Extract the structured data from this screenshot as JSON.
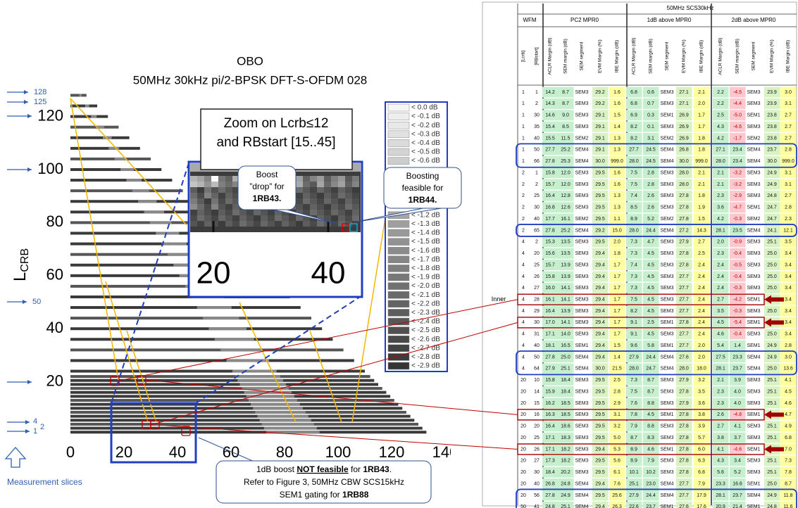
{
  "figure": {
    "title_lines": [
      "OBO",
      "50MHz 30kHz pi/2-BPSK DFT-S-OFDM 028"
    ],
    "y_axis_label": "L",
    "y_axis_subscript": "CRB",
    "xticks": [
      0,
      20,
      40,
      60,
      80,
      100,
      120,
      140
    ],
    "yticks": [
      20,
      40,
      60,
      80,
      100,
      120
    ],
    "slice_labels": [
      "128",
      "125",
      "50",
      "4",
      "1",
      "2"
    ],
    "slices_caption": "Measurement slices",
    "legend": [
      "< 0.0 dB",
      "< -0.1 dB",
      "< -0.2 dB",
      "< -0.3 dB",
      "< -0.4 dB",
      "< -0.5 dB",
      "< -0.6 dB",
      "< -1.2 dB",
      "< -1.3 dB",
      "< -1.4 dB",
      "< -1.5 dB",
      "< -1.6 dB",
      "< -1.7 dB",
      "< -1.8 dB",
      "< -1.9 dB",
      "< -2.0 dB",
      "< -2.1 dB",
      "< -2.2 dB",
      "< -2.3 dB",
      "< -2.4 dB",
      "< -2.5 dB",
      "< -2.6 dB",
      "< -2.7 dB",
      "< -2.8 dB",
      "< -2.9 dB"
    ],
    "zoom_title": [
      "Zoom on Lcrb≤12",
      "and RBstart [15..45]"
    ],
    "zoom_ticks": [
      "20",
      "40"
    ],
    "callout_drop": [
      "Boost",
      "”drop” for",
      "1RB43."
    ],
    "callout_feasible": [
      "Boosting",
      "feasible for",
      "1RB44."
    ],
    "note_line1": [
      "1dB boost ",
      "NOT feasible",
      " for ",
      "1RB43",
      "."
    ],
    "note_line2": "Refer to Figure 3, 50MHz CBW SCS15kHz",
    "note_line3": [
      "SEM1 gating for ",
      "1RB88"
    ]
  },
  "table": {
    "title": "50MHz SCS30kHz",
    "wfm": "WFM",
    "groups": [
      "PC2 MPR0",
      "1dB above MPR0",
      "2dB above MPR0"
    ],
    "wfm_columns": [
      "[Lcrb]",
      "[RBstart]"
    ],
    "metric_columns": [
      "ACLR Margin (dB)",
      "SEM margin (dB)",
      "SEM segment",
      "EVM Margin (%)",
      "IBE Margin (dB)"
    ],
    "row_note": "Inner",
    "rows": [
      [
        "1",
        "1",
        "14.2",
        "8.7",
        "SEM3",
        "29.2",
        "1.6",
        "6.8",
        "0.6",
        "SEM3",
        "27.1",
        "2.1",
        "2.2",
        "-4.5",
        "SEM3",
        "23.9",
        "3.0"
      ],
      [
        "1",
        "2",
        "14.3",
        "8.7",
        "SEM3",
        "29.2",
        "1.6",
        "6.8",
        "0.7",
        "SEM3",
        "27.1",
        "2.0",
        "2.2",
        "-4.4",
        "SEM3",
        "23.9",
        "3.1"
      ],
      [
        "1",
        "30",
        "14.6",
        "9.0",
        "SEM3",
        "29.1",
        "1.5",
        "6.9",
        "0.3",
        "SEM1",
        "26.9",
        "1.7",
        "2.5",
        "-5.0",
        "SEM1",
        "23.8",
        "2.7"
      ],
      [
        "1",
        "35",
        "15.4",
        "8.5",
        "SEM3",
        "29.1",
        "1.4",
        "8.2",
        "0.1",
        "SEM3",
        "26.9",
        "1.7",
        "4.3",
        "-4.6",
        "SEM3",
        "23.8",
        "2.7"
      ],
      [
        "1",
        "40",
        "15.5",
        "11.5",
        "SEM2",
        "29.1",
        "1.3",
        "8.2",
        "3.1",
        "SEM2",
        "26.9",
        "1.8",
        "4.2",
        "-1.7",
        "SEM2",
        "23.8",
        "2.7"
      ],
      [
        "1",
        "50",
        "27.7",
        "25.2",
        "SEM4",
        "29.1",
        "1.3",
        "27.7",
        "24.5",
        "SEM4",
        "26.8",
        "1.8",
        "27.1",
        "23.4",
        "SEM4",
        "23.7",
        "2.8"
      ],
      [
        "1",
        "66",
        "27.8",
        "25.3",
        "SEM4",
        "30.0",
        "999.0",
        "28.0",
        "24.5",
        "SEM4",
        "30.0",
        "999.0",
        "28.0",
        "23.4",
        "SEM4",
        "30.0",
        "999.0"
      ],
      [
        "2",
        "1",
        "15.8",
        "12.0",
        "SEM3",
        "29.5",
        "1.6",
        "7.5",
        "2.8",
        "SEM3",
        "28.0",
        "2.1",
        "2.1",
        "-3.2",
        "SEM3",
        "24.9",
        "3.1"
      ],
      [
        "2",
        "2",
        "15.7",
        "12.0",
        "SEM3",
        "29.5",
        "1.6",
        "7.5",
        "2.8",
        "SEM3",
        "28.0",
        "2.1",
        "2.1",
        "-3.2",
        "SEM3",
        "24.9",
        "3.1"
      ],
      [
        "2",
        "25",
        "16.4",
        "12.8",
        "SEM3",
        "29.5",
        "1.3",
        "7.4",
        "2.6",
        "SEM3",
        "27.8",
        "1.8",
        "2.3",
        "-2.9",
        "SEM3",
        "24.8",
        "2.7"
      ],
      [
        "2",
        "30",
        "16.8",
        "12.6",
        "SEM3",
        "29.5",
        "1.3",
        "8.5",
        "2.6",
        "SEM3",
        "27.8",
        "1.9",
        "3.6",
        "-4.7",
        "SEM1",
        "24.7",
        "2.8"
      ],
      [
        "2",
        "40",
        "17.7",
        "16.1",
        "SEM2",
        "29.5",
        "1.1",
        "8.9",
        "5.2",
        "SEM2",
        "27.8",
        "1.5",
        "4.2",
        "-0.3",
        "SEM2",
        "24.7",
        "2.3"
      ],
      [
        "2",
        "65",
        "27.8",
        "25.2",
        "SEM4",
        "29.2",
        "15.0",
        "28.0",
        "24.4",
        "SEM4",
        "27.2",
        "14.3",
        "28.1",
        "23.5",
        "SEM4",
        "24.1",
        "12.1"
      ],
      [
        "4",
        "2",
        "15.3",
        "13.5",
        "SEM3",
        "29.5",
        "2.0",
        "7.3",
        "4.7",
        "SEM3",
        "27.9",
        "2.7",
        "2.0",
        "-0.9",
        "SEM3",
        "25.1",
        "3.5"
      ],
      [
        "4",
        "20",
        "15.6",
        "13.5",
        "SEM3",
        "29.4",
        "1.8",
        "7.3",
        "4.5",
        "SEM3",
        "27.8",
        "2.5",
        "2.3",
        "-0.4",
        "SEM3",
        "25.0",
        "3.4"
      ],
      [
        "4",
        "25",
        "15.7",
        "13.9",
        "SEM3",
        "29.4",
        "1.7",
        "7.4",
        "4.5",
        "SEM3",
        "27.8",
        "2.4",
        "2.4",
        "-0.5",
        "SEM3",
        "25.0",
        "3.4"
      ],
      [
        "4",
        "26",
        "15.8",
        "13.9",
        "SEM3",
        "29.4",
        "1.7",
        "7.3",
        "4.5",
        "SEM3",
        "27.7",
        "2.4",
        "2.4",
        "-0.4",
        "SEM3",
        "25.0",
        "3.4"
      ],
      [
        "4",
        "27",
        "16.0",
        "14.1",
        "SEM3",
        "29.4",
        "1.7",
        "7.3",
        "4.5",
        "SEM3",
        "27.7",
        "2.4",
        "2.4",
        "-0.3",
        "SEM3",
        "25.0",
        "3.4"
      ],
      [
        "4",
        "28",
        "16.1",
        "14.1",
        "SEM3",
        "29.4",
        "1.7",
        "7.5",
        "4.5",
        "SEM3",
        "27.7",
        "2.4",
        "2.7",
        "-4.2",
        "SEM1",
        null,
        "3.4"
      ],
      [
        "4",
        "29",
        "16.4",
        "13.9",
        "SEM3",
        "29.4",
        "1.7",
        "8.2",
        "4.5",
        "SEM3",
        "27.7",
        "2.4",
        "3.5",
        "-0.3",
        "SEM3",
        "25.0",
        "3.4"
      ],
      [
        "4",
        "30",
        "17.0",
        "14.1",
        "SEM3",
        "29.4",
        "1.7",
        "9.1",
        "2.5",
        "SEM1",
        "27.8",
        "2.4",
        "4.5",
        "-5.4",
        "SEM1",
        null,
        "3.4"
      ],
      [
        "4",
        "31",
        "17.1",
        "14.0",
        "SEM3",
        "29.4",
        "1.7",
        "9.1",
        "4.5",
        "SEM3",
        "27.7",
        "2.4",
        "4.6",
        "-0.4",
        "SEM3",
        "25.0",
        "3.4"
      ],
      [
        "4",
        "40",
        "18.1",
        "16.5",
        "SEM1",
        "29.4",
        "1.5",
        "9.6",
        "5.8",
        "SEM1",
        "27.7",
        "2.0",
        "5.4",
        "1.4",
        "SEM1",
        "24.9",
        "2.8"
      ],
      [
        "4",
        "50",
        "27.8",
        "25.0",
        "SEM4",
        "29.4",
        "1.4",
        "27.9",
        "24.4",
        "SEM4",
        "27.6",
        "2.0",
        "27.5",
        "23.3",
        "SEM4",
        "24.9",
        "3.0"
      ],
      [
        "4",
        "64",
        "27.9",
        "25.1",
        "SEM4",
        "30.0",
        "21.5",
        "28.0",
        "24.7",
        "SEM4",
        "28.0",
        "18.0",
        "28.1",
        "23.7",
        "SEM4",
        "25.0",
        "13.6"
      ],
      [
        "20",
        "10",
        "15.8",
        "18.4",
        "SEM3",
        "29.5",
        "2.5",
        "7.3",
        "8.7",
        "SEM3",
        "27.9",
        "3.2",
        "2.1",
        "3.9",
        "SEM3",
        "25.1",
        "4.1"
      ],
      [
        "20",
        "14",
        "15.9",
        "18.4",
        "SEM3",
        "29.5",
        "2.8",
        "7.5",
        "8.7",
        "SEM3",
        "27.8",
        "3.5",
        "2.3",
        "4.0",
        "SEM3",
        "25.1",
        "4.5"
      ],
      [
        "20",
        "15",
        "16.2",
        "18.5",
        "SEM3",
        "29.5",
        "2.9",
        "7.6",
        "8.8",
        "SEM3",
        "27.9",
        "3.6",
        "2.3",
        "4.0",
        "SEM3",
        "25.1",
        "4.6"
      ],
      [
        "20",
        "16",
        "16.3",
        "18.5",
        "SEM3",
        "29.5",
        "3.1",
        "7.8",
        "4.5",
        "SEM1",
        "27.8",
        "3.8",
        "2.6",
        "-4.8",
        "SEM1",
        null,
        "4.7"
      ],
      [
        "20",
        "20",
        "16.4",
        "18.6",
        "SEM3",
        "29.5",
        "3.2",
        "7.9",
        "8.8",
        "SEM3",
        "27.8",
        "3.9",
        "2.7",
        "4.1",
        "SEM3",
        "25.1",
        "4.9"
      ],
      [
        "20",
        "25",
        "17.1",
        "18.3",
        "SEM3",
        "29.5",
        "5.0",
        "8.7",
        "8.3",
        "SEM3",
        "27.8",
        "5.7",
        "3.8",
        "3.7",
        "SEM3",
        "25.1",
        "6.8"
      ],
      [
        "20",
        "26",
        "17.1",
        "18.2",
        "SEM3",
        "29.4",
        "5.3",
        "8.9",
        "4.6",
        "SEM1",
        "27.8",
        "6.0",
        "4.1",
        "-4.6",
        "SEM1",
        null,
        "7.0"
      ],
      [
        "20",
        "27",
        "17.3",
        "18.2",
        "SEM3",
        "29.5",
        "5.6",
        "8.9",
        "7.9",
        "SEM3",
        "27.8",
        "6.3",
        "4.3",
        "3.4",
        "SEM3",
        "25.1",
        "7.3"
      ],
      [
        "20",
        "30",
        "18.4",
        "20.2",
        "SEM3",
        "29.5",
        "6.1",
        "10.1",
        "10.2",
        "SEM3",
        "27.8",
        "6.8",
        "5.6",
        "5.2",
        "SEM3",
        "25.1",
        "7.8"
      ],
      [
        "20",
        "40",
        "26.8",
        "24.8",
        "SEM4",
        "29.4",
        "7.6",
        "25.1",
        "23.0",
        "SEM4",
        "27.7",
        "7.9",
        "23.3",
        "16.6",
        "SEM1",
        "25.0",
        "8.7"
      ],
      [
        "20",
        "56",
        "27.8",
        "24.9",
        "SEM4",
        "29.5",
        "25.6",
        "27.9",
        "24.4",
        "SEM4",
        "27.7",
        "17.9",
        "28.1",
        "23.7",
        "SEM4",
        "24.9",
        "11.8"
      ],
      [
        "50",
        "41",
        "24.8",
        "25.1",
        "SEM4",
        "29.4",
        "26.3",
        "22.6",
        "23.7",
        "SEM1",
        "27.6",
        "17.6",
        "20.9",
        "21.4",
        "SEM1",
        "24.8",
        "11.6"
      ]
    ]
  }
}
